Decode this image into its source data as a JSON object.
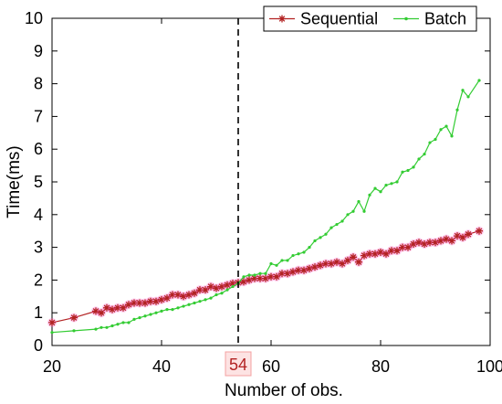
{
  "chart_data": {
    "type": "line",
    "xlabel": "Number of obs.",
    "ylabel": "Time(ms)",
    "xlim": [
      20,
      100
    ],
    "ylim": [
      0,
      10
    ],
    "xticks": [
      20,
      40,
      60,
      80,
      100
    ],
    "yticks": [
      0,
      1,
      2,
      3,
      4,
      5,
      6,
      7,
      8,
      9,
      10
    ],
    "grid": false,
    "legend_position": "top-right",
    "annotation": {
      "x": 54,
      "label": "54",
      "style": "dashed vertical line"
    },
    "series": [
      {
        "name": "Sequential",
        "color": "#b22222",
        "marker": "star",
        "x": [
          20,
          24,
          28,
          29,
          30,
          31,
          32,
          33,
          34,
          35,
          36,
          37,
          38,
          39,
          40,
          41,
          42,
          43,
          44,
          45,
          46,
          47,
          48,
          49,
          50,
          51,
          52,
          53,
          54,
          55,
          56,
          57,
          58,
          59,
          60,
          61,
          62,
          63,
          64,
          65,
          66,
          67,
          68,
          69,
          70,
          71,
          72,
          73,
          74,
          75,
          76,
          77,
          78,
          79,
          80,
          81,
          82,
          83,
          84,
          85,
          86,
          87,
          88,
          89,
          90,
          91,
          92,
          93,
          94,
          95,
          96,
          98
        ],
        "values": [
          0.7,
          0.85,
          1.05,
          1.0,
          1.15,
          1.1,
          1.15,
          1.15,
          1.25,
          1.3,
          1.3,
          1.3,
          1.35,
          1.35,
          1.4,
          1.45,
          1.55,
          1.55,
          1.5,
          1.55,
          1.6,
          1.7,
          1.7,
          1.8,
          1.75,
          1.8,
          1.85,
          1.9,
          1.92,
          1.95,
          2.0,
          2.05,
          2.05,
          2.05,
          2.1,
          2.1,
          2.2,
          2.2,
          2.25,
          2.3,
          2.3,
          2.35,
          2.4,
          2.45,
          2.5,
          2.5,
          2.55,
          2.5,
          2.6,
          2.7,
          2.55,
          2.75,
          2.8,
          2.8,
          2.85,
          2.8,
          2.9,
          2.9,
          3.0,
          3.0,
          3.1,
          3.15,
          3.1,
          3.15,
          3.15,
          3.2,
          3.25,
          3.2,
          3.35,
          3.3,
          3.4,
          3.5
        ]
      },
      {
        "name": "Batch",
        "color": "#33cc33",
        "marker": "dot",
        "x": [
          20,
          24,
          28,
          29,
          30,
          31,
          32,
          33,
          34,
          35,
          36,
          37,
          38,
          39,
          40,
          41,
          42,
          43,
          44,
          45,
          46,
          47,
          48,
          49,
          50,
          51,
          52,
          53,
          54,
          55,
          56,
          57,
          58,
          59,
          60,
          61,
          62,
          63,
          64,
          65,
          66,
          67,
          68,
          69,
          70,
          71,
          72,
          73,
          74,
          75,
          76,
          77,
          78,
          79,
          80,
          81,
          82,
          83,
          84,
          85,
          86,
          87,
          88,
          89,
          90,
          91,
          92,
          93,
          94,
          95,
          96,
          98
        ],
        "values": [
          0.4,
          0.45,
          0.5,
          0.55,
          0.55,
          0.6,
          0.65,
          0.7,
          0.7,
          0.8,
          0.85,
          0.9,
          0.95,
          1.0,
          1.05,
          1.1,
          1.1,
          1.15,
          1.2,
          1.25,
          1.3,
          1.35,
          1.4,
          1.45,
          1.55,
          1.6,
          1.7,
          1.8,
          1.9,
          2.1,
          2.15,
          2.15,
          2.2,
          2.2,
          2.5,
          2.45,
          2.6,
          2.6,
          2.75,
          2.8,
          2.85,
          3.0,
          3.2,
          3.3,
          3.4,
          3.6,
          3.7,
          3.8,
          4.0,
          4.1,
          4.4,
          4.1,
          4.6,
          4.8,
          4.7,
          4.9,
          4.95,
          5.0,
          5.3,
          5.35,
          5.45,
          5.7,
          5.85,
          6.2,
          6.3,
          6.6,
          6.7,
          6.4,
          7.2,
          7.8,
          7.6,
          8.1
        ]
      }
    ]
  }
}
